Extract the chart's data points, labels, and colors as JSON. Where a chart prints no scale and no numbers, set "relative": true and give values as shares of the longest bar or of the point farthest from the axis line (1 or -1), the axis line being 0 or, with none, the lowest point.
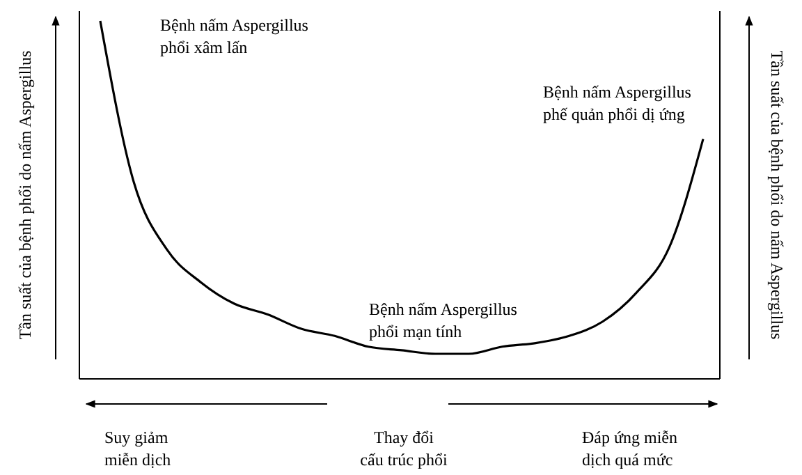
{
  "chart_data": {
    "type": "line",
    "relative": true,
    "ylabel": "Tần suất của bệnh phổi do nấm Aspergillus",
    "y2label": "Tần suất của bệnh phổi do nấm Aspergillus",
    "categories": [
      null,
      null,
      null,
      null,
      null,
      null,
      null,
      null,
      null,
      null,
      null,
      null,
      null,
      null,
      null,
      null,
      null,
      null,
      null
    ],
    "series": [
      {
        "color": "#000000",
        "values": [
          1,
          0.55,
          0.36,
          0.27,
          0.21,
          0.18,
          0.14,
          0.12,
          0.09,
          0.08,
          0.07,
          0.07,
          0.09,
          0.1,
          0.12,
          0.16,
          0.24,
          0.37,
          0.67
        ]
      }
    ],
    "marker": "none",
    "line_style": "solid",
    "annotations": [
      "Bệnh nấm Aspergillus\nphổi xâm lấn",
      "Bệnh nấm Aspergillus\nphế quản phổi dị ứng",
      "Bệnh nấm Aspergillus\nphổi mạn tính",
      "Suy giảm\nmiễn dịch",
      "Thay đổi\ncấu trúc phổi",
      "Đáp ứng miễn\ndịch quá mức"
    ]
  }
}
